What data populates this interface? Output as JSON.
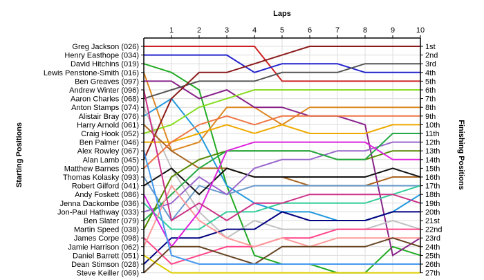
{
  "chart_data": {
    "type": "line",
    "title": "Laps",
    "ylabel_left": "Starting Positions",
    "ylabel_right": "Finishing Positions",
    "x": [
      0,
      1,
      2,
      3,
      4,
      5,
      6,
      7,
      8,
      9,
      10
    ],
    "x_tick_labels": [
      "1",
      "2",
      "3",
      "4",
      "5",
      "6",
      "7",
      "8",
      "9",
      "10"
    ],
    "start_labels": [
      "Greg Jackson (026)",
      "Henry Easthope (034)",
      "David Hitchins (019)",
      "Lewis Penstone-Smith (016)",
      "Ben Greaves (097)",
      "Andrew Winter (096)",
      "Aaron Charles (068)",
      "Anton Stamps (074)",
      "Alistair Bray (076)",
      "Harry Arnold (061)",
      "Craig Hook (052)",
      "Ben Palmer (046)",
      "Alex Rowley (067)",
      "Alan Lamb (045)",
      "Matthew Barnes (090)",
      "Thomas Kolasky (093)",
      "Robert Gilford (041)",
      "Andy Foskett (086)",
      "Jenna Dackombe (036)",
      "Jon-Paul Hathway (033)",
      "Ben Slater (079)",
      "Martin Speed (038)",
      "James Corpe (098)",
      "Jamie Harrison (062)",
      "Daniel Barrett (051)",
      "Dean Stimson (028)",
      "Steve Keiller (069)"
    ],
    "finish_labels": [
      "1st",
      "2nd",
      "3rd",
      "4th",
      "5th",
      "6th",
      "7th",
      "8th",
      "9th",
      "10th",
      "11th",
      "12th",
      "13th",
      "14th",
      "15th",
      "16th",
      "17th",
      "18th",
      "19th",
      "20th",
      "21st",
      "22nd",
      "23rd",
      "24th",
      "25th",
      "26th",
      "27th"
    ],
    "ylim": [
      1,
      27
    ],
    "grid": true,
    "series": [
      {
        "color": "#cc2222",
        "values": [
          1,
          1,
          1,
          1,
          1,
          5,
          5,
          5,
          5,
          5,
          5
        ]
      },
      {
        "color": "#2222cc",
        "values": [
          2,
          2,
          2,
          2,
          4,
          3,
          3,
          3,
          4,
          4,
          4
        ]
      },
      {
        "color": "#22aa22",
        "values": [
          3,
          4,
          6,
          17,
          25,
          26,
          26,
          27,
          27,
          24,
          25
        ]
      },
      {
        "color": "#dd8822",
        "values": [
          4,
          13,
          12,
          8,
          8,
          10,
          8,
          8,
          8,
          8,
          8
        ]
      },
      {
        "color": "#882288",
        "values": [
          5,
          5,
          7,
          6,
          8,
          8,
          9,
          9,
          10,
          25,
          23
        ]
      },
      {
        "color": "#2299dd",
        "values": [
          9,
          7,
          11,
          17,
          19,
          20,
          20,
          21,
          21,
          20,
          18
        ]
      },
      {
        "color": "#555555",
        "values": [
          7,
          6,
          5,
          5,
          5,
          4,
          4,
          4,
          3,
          3,
          3
        ]
      },
      {
        "color": "#c0c0c0",
        "values": [
          8,
          15,
          20,
          23,
          21,
          22,
          22,
          22,
          22,
          21,
          22
        ]
      },
      {
        "color": "#88dd22",
        "values": [
          11,
          10,
          8,
          7,
          6,
          6,
          6,
          6,
          6,
          6,
          6
        ]
      },
      {
        "color": "#8b1a1a",
        "values": [
          14,
          7,
          4,
          4,
          3,
          2,
          1,
          1,
          1,
          1,
          1
        ]
      },
      {
        "color": "#eeaa00",
        "values": [
          12,
          12,
          11,
          10,
          11,
          10,
          11,
          11,
          11,
          10,
          10
        ]
      },
      {
        "color": "#000080",
        "values": [
          26,
          23,
          23,
          22,
          22,
          20,
          21,
          21,
          21,
          20,
          20
        ]
      },
      {
        "color": "#ff4488",
        "values": [
          23,
          26,
          25,
          24,
          24,
          23,
          23,
          22,
          22,
          22,
          22
        ]
      },
      {
        "color": "#aa6622",
        "values": [
          10,
          13,
          15,
          15,
          16,
          16,
          17,
          17,
          17,
          16,
          16
        ]
      },
      {
        "color": "#6699cc",
        "values": [
          16,
          21,
          17,
          18,
          17,
          17,
          17,
          17,
          17,
          17,
          17
        ]
      },
      {
        "color": "#111111",
        "values": [
          17,
          15,
          18,
          15,
          16,
          16,
          16,
          16,
          16,
          15,
          16
        ]
      },
      {
        "color": "#9966cc",
        "values": [
          20,
          19,
          16,
          18,
          15,
          14,
          14,
          13,
          13,
          12,
          12
        ]
      },
      {
        "color": "#33cc99",
        "values": [
          19,
          22,
          22,
          20,
          20,
          19,
          19,
          19,
          19,
          18,
          17
        ]
      },
      {
        "color": "#ee7744",
        "values": [
          15,
          12,
          10,
          9,
          10,
          9,
          9,
          9,
          9,
          9,
          9
        ]
      },
      {
        "color": "#558800",
        "values": [
          22,
          16,
          14,
          13,
          13,
          13,
          13,
          14,
          14,
          13,
          13
        ]
      },
      {
        "color": "#22aa44",
        "values": [
          21,
          18,
          15,
          13,
          13,
          13,
          13,
          14,
          14,
          11,
          11
        ]
      },
      {
        "color": "#ff9999",
        "values": [
          24,
          17,
          21,
          23,
          24,
          23,
          24,
          23,
          23,
          23,
          23
        ]
      },
      {
        "color": "#ddcc00",
        "values": [
          25,
          27,
          27,
          27,
          27,
          27,
          27,
          27,
          27,
          27,
          27
        ]
      },
      {
        "color": "#dd22dd",
        "values": [
          18,
          24,
          20,
          13,
          12,
          12,
          12,
          12,
          12,
          14,
          14
        ]
      },
      {
        "color": "#664422",
        "values": [
          27,
          24,
          24,
          25,
          26,
          24,
          24,
          24,
          24,
          23,
          24
        ]
      },
      {
        "color": "#4499ee",
        "values": [
          13,
          25,
          26,
          26,
          26,
          26,
          26,
          26,
          26,
          26,
          26
        ]
      },
      {
        "color": "#cc3388",
        "values": [
          6,
          21,
          19,
          21,
          19,
          19,
          18,
          18,
          18,
          18,
          19
        ]
      }
    ]
  }
}
